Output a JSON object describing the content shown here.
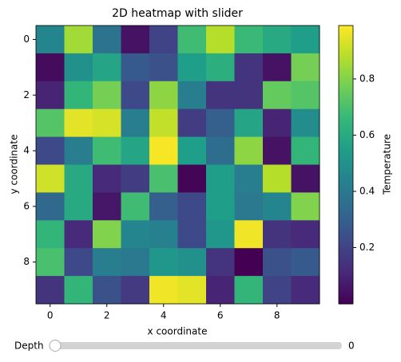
{
  "chart_data": {
    "type": "heatmap",
    "title": "2D heatmap with slider",
    "x_label": "x coordinate",
    "y_label": "y coordinate",
    "xlim": [
      -0.5,
      9.5
    ],
    "ylim": [
      9.5,
      -0.5
    ],
    "xticks": [
      0,
      2,
      4,
      6,
      8
    ],
    "yticks": [
      0,
      2,
      4,
      6,
      8
    ],
    "colormap": "viridis",
    "clim": [
      0.0,
      0.99
    ],
    "colorbar_label": "Temperature",
    "colorbar_ticks": [
      0.2,
      0.4,
      0.6,
      0.8
    ],
    "z": [
      [
        0.45,
        0.85,
        0.38,
        0.05,
        0.2,
        0.68,
        0.88,
        0.67,
        0.6,
        0.55
      ],
      [
        0.03,
        0.5,
        0.58,
        0.28,
        0.25,
        0.55,
        0.62,
        0.15,
        0.05,
        0.78
      ],
      [
        0.1,
        0.65,
        0.78,
        0.22,
        0.82,
        0.42,
        0.15,
        0.15,
        0.75,
        0.72
      ],
      [
        0.72,
        0.95,
        0.93,
        0.42,
        0.9,
        0.18,
        0.3,
        0.58,
        0.1,
        0.48
      ],
      [
        0.22,
        0.42,
        0.68,
        0.58,
        0.98,
        0.55,
        0.35,
        0.82,
        0.05,
        0.65
      ],
      [
        0.92,
        0.6,
        0.12,
        0.18,
        0.7,
        0.01,
        0.55,
        0.42,
        0.88,
        0.05
      ],
      [
        0.33,
        0.6,
        0.06,
        0.68,
        0.3,
        0.22,
        0.55,
        0.4,
        0.45,
        0.8
      ],
      [
        0.65,
        0.12,
        0.8,
        0.45,
        0.43,
        0.22,
        0.52,
        0.97,
        0.15,
        0.12
      ],
      [
        0.7,
        0.22,
        0.42,
        0.4,
        0.52,
        0.5,
        0.15,
        0.0,
        0.25,
        0.28
      ],
      [
        0.15,
        0.65,
        0.25,
        0.17,
        0.97,
        0.95,
        0.1,
        0.65,
        0.2,
        0.12
      ]
    ],
    "slider": {
      "label": "Depth",
      "value": 0
    }
  }
}
